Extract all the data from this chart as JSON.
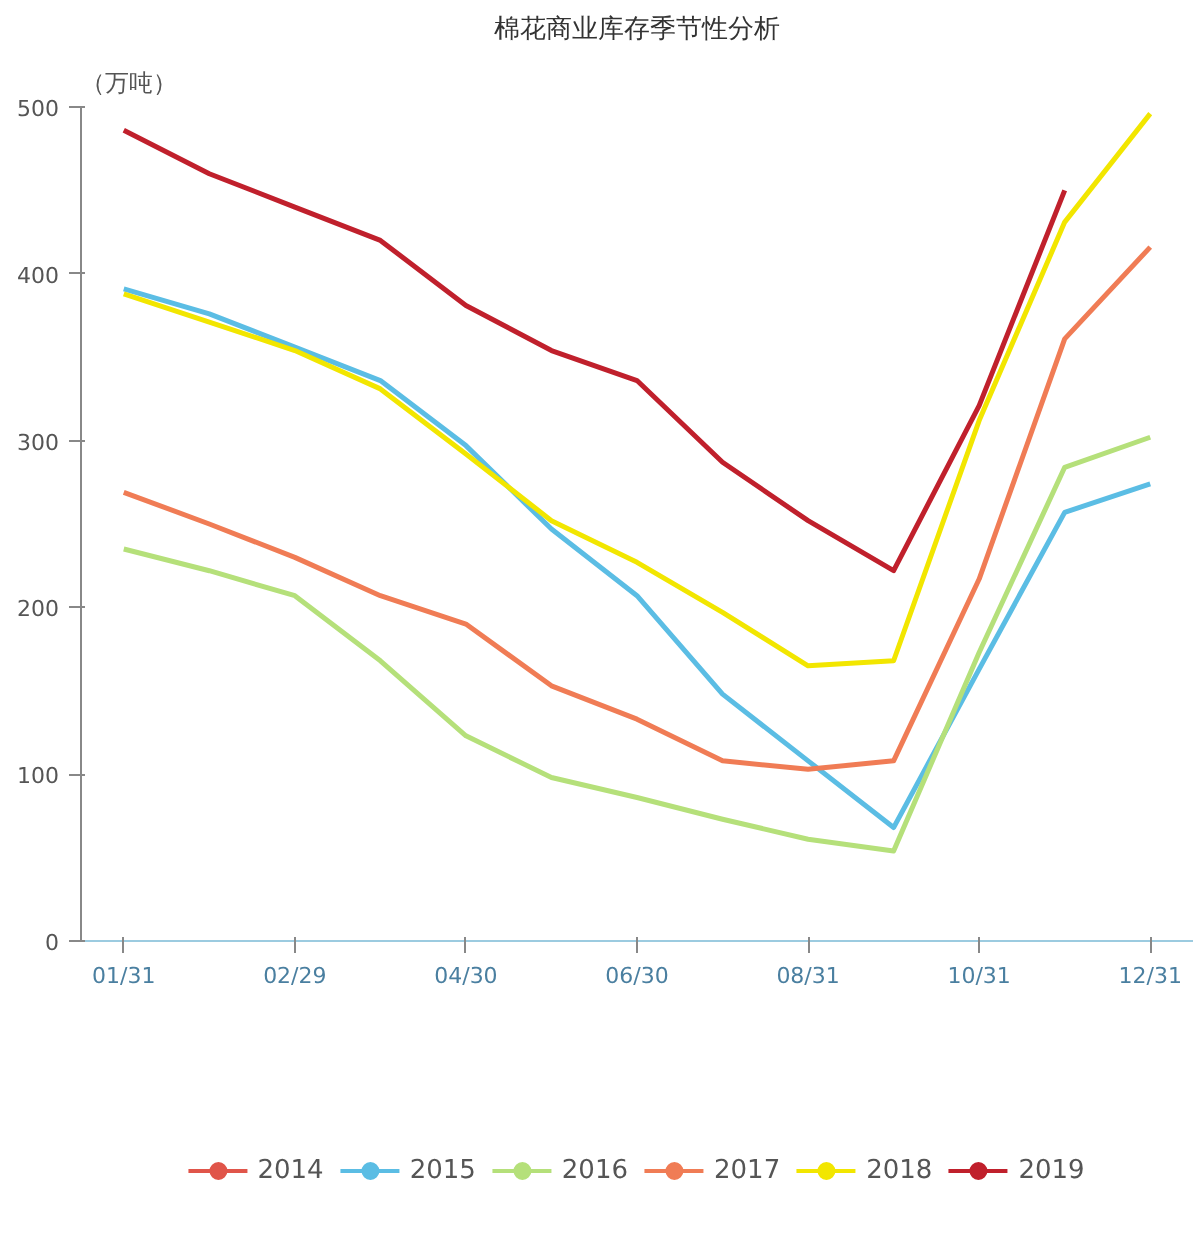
{
  "chart_data": {
    "type": "line",
    "title": "棉花商业库存季节性分析",
    "ylabel": "（万吨）",
    "categories": [
      "01/31",
      null,
      "02/29",
      null,
      "04/30",
      null,
      "06/30",
      null,
      "08/31",
      null,
      "10/31",
      null,
      "12/31"
    ],
    "ylim": [
      0,
      500
    ],
    "yticks": [
      0,
      100,
      200,
      300,
      400,
      500
    ],
    "grid": false,
    "legend": "bottom",
    "series": [
      {
        "name": "2014",
        "color": "#e0554a",
        "values": [
          null,
          null,
          null,
          null,
          null,
          null,
          null,
          null,
          null,
          null,
          null,
          null,
          null
        ]
      },
      {
        "name": "2015",
        "color": "#5bbde4",
        "values": [
          391,
          376,
          356,
          336,
          297,
          247,
          207,
          148,
          108,
          68,
          163,
          257,
          274
        ]
      },
      {
        "name": "2016",
        "color": "#b5e07a",
        "values": [
          235,
          222,
          207,
          168,
          123,
          98,
          86,
          73,
          61,
          54,
          173,
          284,
          302
        ]
      },
      {
        "name": "2017",
        "color": "#f07c55",
        "values": [
          269,
          250,
          230,
          207,
          190,
          153,
          133,
          108,
          103,
          108,
          217,
          361,
          416
        ]
      },
      {
        "name": "2018",
        "color": "#f2e600",
        "values": [
          388,
          371,
          354,
          331,
          292,
          252,
          227,
          197,
          165,
          168,
          312,
          431,
          496
        ]
      },
      {
        "name": "2019",
        "color": "#c0202c",
        "values": [
          486,
          460,
          440,
          420,
          381,
          354,
          336,
          287,
          252,
          222,
          321,
          450,
          null
        ]
      }
    ]
  }
}
